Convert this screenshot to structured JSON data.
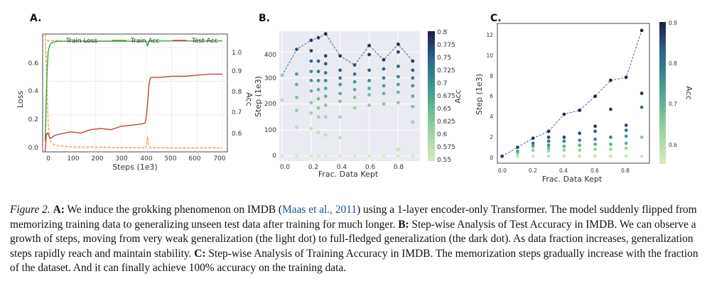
{
  "panels": {
    "a": {
      "letter": "A.",
      "legend": [
        "Train Loss",
        "Train Acc",
        "Test Acc"
      ],
      "xlabel": "Steps (1e3)",
      "ylabel_left": "Loss",
      "ylabel_right": "Acc",
      "xticks": [
        "0",
        "100",
        "200",
        "300",
        "400",
        "500",
        "600",
        "700"
      ],
      "yticks_left": [
        "0.0",
        "0.2",
        "0.4",
        "0.6"
      ],
      "yticks_right": [
        "0.6",
        "0.7",
        "0.8",
        "0.9",
        "1.0"
      ]
    },
    "b": {
      "letter": "B.",
      "xlabel": "Frac. Data Kept",
      "ylabel": "Step (1e3)",
      "xticks": [
        "0.0",
        "0.2",
        "0.4",
        "0.6",
        "0.8"
      ],
      "yticks": [
        "0",
        "100",
        "200",
        "300",
        "400"
      ],
      "cbar_label": "Acc",
      "cbar_ticks": [
        "0.8",
        "0.775",
        "0.75",
        "0.725",
        "0.7",
        "0.675",
        "0.65",
        "0.625",
        "0.6",
        "0.575",
        "0.55"
      ]
    },
    "c": {
      "letter": "C.",
      "xlabel": "Frac. Data Kept",
      "ylabel": "Step (1e3)",
      "xticks": [
        "0.0",
        "0.2",
        "0.4",
        "0.6",
        "0.8"
      ],
      "yticks": [
        "0",
        "2",
        "4",
        "6",
        "8",
        "10",
        "12"
      ],
      "cbar_label": "Acc",
      "cbar_ticks": [
        "0.9",
        "0.8",
        "0.7",
        "0.6"
      ]
    }
  },
  "colors": {
    "train_loss": "#f0a050",
    "train_acc": "#3aa33a",
    "test_acc": "#c94040",
    "dashed_line": "#3d6a8a",
    "caption_link": "#1f4e9a"
  },
  "caption": {
    "fig_label": "Figure 2.",
    "a_label": "A:",
    "a_text_1": " We induce the grokking phenomenon on IMDB (",
    "a_cite": "Maas et al., 2011",
    "a_text_2": ") using a 1-layer encoder-only Transformer. The model suddenly flipped from memorizing training data to generalizing unseen test data after training for much longer. ",
    "b_label": "B:",
    "b_text": " Step-wise Analysis of Test Accuracy in IMDB. We can observe a growth of steps, moving from very weak generalization (the light dot) to full-fledged generalization (the dark dot). As data fraction increases, generalization steps rapidly reach and maintain stability. ",
    "c_label": "C:",
    "c_text": " Step-wise Analysis of Training Accuracy in IMDB. The memorization steps gradually increase with the fraction of the dataset. And it can finally achieve 100% accuracy on the training data."
  },
  "chart_data": [
    {
      "type": "line",
      "title": "A.",
      "xlabel": "Steps (1e3)",
      "ylabel": "Loss / Acc",
      "xlim": [
        -10,
        720
      ],
      "ylim_left": [
        -0.02,
        0.68
      ],
      "ylim_right": [
        0.5,
        1.03
      ],
      "series": [
        {
          "name": "Train Loss",
          "axis": "left",
          "style": "dashed",
          "x": [
            0,
            4,
            8,
            12,
            16,
            20,
            25,
            30,
            40,
            50,
            60,
            80,
            100,
            150,
            200,
            250,
            300,
            350,
            400,
            405,
            410,
            415,
            420,
            450,
            500,
            550,
            600,
            650,
            700
          ],
          "y": [
            0.68,
            0.55,
            0.32,
            0.15,
            0.08,
            0.05,
            0.035,
            0.028,
            0.02,
            0.018,
            0.015,
            0.012,
            0.01,
            0.009,
            0.008,
            0.007,
            0.006,
            0.006,
            0.006,
            0.07,
            0.01,
            0.006,
            0.005,
            0.005,
            0.004,
            0.004,
            0.004,
            0.004,
            0.004
          ]
        },
        {
          "name": "Train Acc",
          "axis": "right",
          "style": "solid",
          "x": [
            0,
            4,
            8,
            12,
            18,
            25,
            35,
            50,
            80,
            120,
            200,
            300,
            400,
            405,
            410,
            415,
            420,
            500,
            600,
            700
          ],
          "y": [
            0.55,
            0.72,
            0.87,
            0.95,
            0.98,
            0.99,
            0.995,
            0.997,
            0.998,
            0.998,
            0.998,
            0.998,
            0.998,
            0.975,
            0.998,
            0.998,
            0.999,
            0.999,
            0.999,
            0.999
          ]
        },
        {
          "name": "Test Acc",
          "axis": "right",
          "style": "solid",
          "x": [
            0,
            5,
            10,
            20,
            40,
            60,
            100,
            140,
            180,
            220,
            260,
            300,
            340,
            380,
            395,
            400,
            405,
            410,
            415,
            420,
            450,
            500,
            550,
            600,
            650,
            700
          ],
          "y": [
            0.5,
            0.58,
            0.585,
            0.56,
            0.575,
            0.58,
            0.59,
            0.585,
            0.6,
            0.605,
            0.6,
            0.615,
            0.62,
            0.625,
            0.63,
            0.66,
            0.72,
            0.8,
            0.83,
            0.835,
            0.835,
            0.84,
            0.84,
            0.845,
            0.85,
            0.85
          ]
        }
      ]
    },
    {
      "type": "scatter",
      "title": "B.",
      "xlabel": "Frac. Data Kept",
      "ylabel": "Step (1e3)",
      "xlim": [
        -0.02,
        0.95
      ],
      "ylim": [
        -20,
        480
      ],
      "color_label": "Acc",
      "color_range": [
        0.55,
        0.8
      ],
      "dashed_line": {
        "x": [
          0.0,
          0.1,
          0.2,
          0.25,
          0.3,
          0.4,
          0.5,
          0.6,
          0.7,
          0.8,
          0.9
        ],
        "y": [
          310,
          410,
          445,
          455,
          470,
          385,
          350,
          425,
          370,
          430,
          365
        ]
      },
      "columns": [
        {
          "x": 0.0,
          "points": [
            [
              0,
              0.55
            ],
            [
              215,
              0.58
            ],
            [
              310,
              0.61
            ]
          ]
        },
        {
          "x": 0.1,
          "points": [
            [
              0,
              0.55
            ],
            [
              110,
              0.58
            ],
            [
              175,
              0.61
            ],
            [
              225,
              0.63
            ],
            [
              275,
              0.66
            ],
            [
              315,
              0.68
            ],
            [
              410,
              0.76
            ]
          ]
        },
        {
          "x": 0.2,
          "points": [
            [
              0,
              0.55
            ],
            [
              105,
              0.57
            ],
            [
              165,
              0.6
            ],
            [
              205,
              0.62
            ],
            [
              250,
              0.65
            ],
            [
              290,
              0.68
            ],
            [
              325,
              0.7
            ],
            [
              365,
              0.74
            ],
            [
              405,
              0.77
            ],
            [
              445,
              0.78
            ]
          ]
        },
        {
          "x": 0.25,
          "points": [
            [
              0,
              0.55
            ],
            [
              90,
              0.57
            ],
            [
              150,
              0.6
            ],
            [
              185,
              0.62
            ],
            [
              220,
              0.64
            ],
            [
              255,
              0.66
            ],
            [
              290,
              0.69
            ],
            [
              325,
              0.72
            ],
            [
              365,
              0.75
            ],
            [
              455,
              0.78
            ]
          ]
        },
        {
          "x": 0.3,
          "points": [
            [
              0,
              0.55
            ],
            [
              80,
              0.57
            ],
            [
              150,
              0.6
            ],
            [
              195,
              0.62
            ],
            [
              230,
              0.65
            ],
            [
              260,
              0.67
            ],
            [
              290,
              0.7
            ],
            [
              320,
              0.72
            ],
            [
              355,
              0.75
            ],
            [
              385,
              0.77
            ],
            [
              470,
              0.79
            ]
          ]
        },
        {
          "x": 0.4,
          "points": [
            [
              0,
              0.55
            ],
            [
              70,
              0.57
            ],
            [
              150,
              0.6
            ],
            [
              210,
              0.63
            ],
            [
              240,
              0.66
            ],
            [
              275,
              0.69
            ],
            [
              300,
              0.72
            ],
            [
              330,
              0.75
            ],
            [
              385,
              0.78
            ]
          ]
        },
        {
          "x": 0.5,
          "points": [
            [
              0,
              0.55
            ],
            [
              185,
              0.6
            ],
            [
              225,
              0.63
            ],
            [
              255,
              0.66
            ],
            [
              285,
              0.69
            ],
            [
              315,
              0.72
            ],
            [
              350,
              0.76
            ]
          ]
        },
        {
          "x": 0.6,
          "points": [
            [
              0,
              0.55
            ],
            [
              195,
              0.61
            ],
            [
              235,
              0.64
            ],
            [
              260,
              0.67
            ],
            [
              290,
              0.7
            ],
            [
              330,
              0.74
            ],
            [
              390,
              0.78
            ],
            [
              425,
              0.79
            ]
          ]
        },
        {
          "x": 0.7,
          "points": [
            [
              0,
              0.55
            ],
            [
              200,
              0.62
            ],
            [
              240,
              0.65
            ],
            [
              270,
              0.68
            ],
            [
              300,
              0.71
            ],
            [
              335,
              0.74
            ],
            [
              370,
              0.78
            ]
          ]
        },
        {
          "x": 0.8,
          "points": [
            [
              0,
              0.55
            ],
            [
              25,
              0.57
            ],
            [
              205,
              0.62
            ],
            [
              245,
              0.65
            ],
            [
              275,
              0.68
            ],
            [
              305,
              0.71
            ],
            [
              345,
              0.74
            ],
            [
              400,
              0.77
            ],
            [
              430,
              0.79
            ]
          ]
        },
        {
          "x": 0.9,
          "points": [
            [
              0,
              0.55
            ],
            [
              130,
              0.6
            ],
            [
              190,
              0.63
            ],
            [
              230,
              0.66
            ],
            [
              270,
              0.69
            ],
            [
              300,
              0.72
            ],
            [
              330,
              0.75
            ],
            [
              365,
              0.78
            ]
          ]
        }
      ]
    },
    {
      "type": "scatter",
      "title": "C.",
      "xlabel": "Frac. Data Kept",
      "ylabel": "Step (1e3)",
      "xlim": [
        -0.03,
        0.95
      ],
      "ylim": [
        -0.7,
        13.3
      ],
      "color_label": "Acc",
      "color_range": [
        0.55,
        0.9
      ],
      "dashed_line": {
        "x": [
          0.0,
          0.1,
          0.2,
          0.3,
          0.4,
          0.5,
          0.6,
          0.7,
          0.8,
          0.9
        ],
        "y": [
          0,
          0.9,
          1.8,
          2.5,
          4.2,
          4.6,
          6.0,
          7.6,
          7.9,
          12.6
        ]
      },
      "columns": [
        {
          "x": 0.0,
          "points": [
            [
              0,
              0.88
            ]
          ]
        },
        {
          "x": 0.1,
          "points": [
            [
              0,
              0.57
            ],
            [
              0.3,
              0.64
            ],
            [
              0.5,
              0.72
            ],
            [
              0.9,
              0.85
            ]
          ]
        },
        {
          "x": 0.2,
          "points": [
            [
              0,
              0.57
            ],
            [
              0.6,
              0.64
            ],
            [
              1.0,
              0.72
            ],
            [
              1.3,
              0.8
            ],
            [
              1.8,
              0.87
            ]
          ]
        },
        {
          "x": 0.3,
          "points": [
            [
              0,
              0.57
            ],
            [
              0.5,
              0.62
            ],
            [
              0.8,
              0.68
            ],
            [
              1.1,
              0.74
            ],
            [
              1.5,
              0.8
            ],
            [
              1.9,
              0.85
            ],
            [
              2.5,
              0.88
            ]
          ]
        },
        {
          "x": 0.4,
          "points": [
            [
              0,
              0.57
            ],
            [
              0.6,
              0.63
            ],
            [
              1.0,
              0.7
            ],
            [
              1.5,
              0.77
            ],
            [
              1.9,
              0.85
            ],
            [
              4.2,
              0.89
            ]
          ]
        },
        {
          "x": 0.5,
          "points": [
            [
              0,
              0.57
            ],
            [
              0.6,
              0.63
            ],
            [
              1.1,
              0.7
            ],
            [
              1.6,
              0.77
            ],
            [
              2.3,
              0.85
            ],
            [
              4.6,
              0.89
            ]
          ]
        },
        {
          "x": 0.6,
          "points": [
            [
              0,
              0.57
            ],
            [
              0.7,
              0.63
            ],
            [
              1.2,
              0.7
            ],
            [
              1.7,
              0.77
            ],
            [
              2.5,
              0.83
            ],
            [
              3.0,
              0.87
            ],
            [
              6.0,
              0.89
            ]
          ]
        },
        {
          "x": 0.7,
          "points": [
            [
              0,
              0.57
            ],
            [
              0.7,
              0.63
            ],
            [
              1.2,
              0.7
            ],
            [
              1.9,
              0.77
            ],
            [
              4.7,
              0.86
            ],
            [
              7.6,
              0.89
            ]
          ]
        },
        {
          "x": 0.8,
          "points": [
            [
              0,
              0.57
            ],
            [
              0.8,
              0.63
            ],
            [
              1.3,
              0.7
            ],
            [
              2.0,
              0.75
            ],
            [
              2.6,
              0.8
            ],
            [
              3.1,
              0.85
            ],
            [
              7.9,
              0.89
            ]
          ]
        },
        {
          "x": 0.9,
          "points": [
            [
              0,
              0.57
            ],
            [
              1.9,
              0.65
            ],
            [
              4.9,
              0.8
            ],
            [
              6.3,
              0.87
            ],
            [
              12.6,
              0.9
            ]
          ]
        }
      ]
    }
  ]
}
